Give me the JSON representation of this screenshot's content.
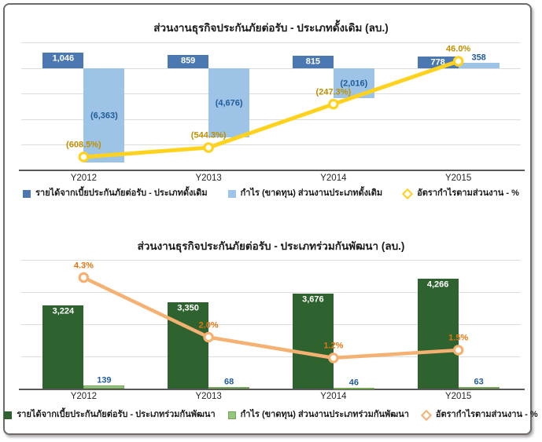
{
  "chart_data": [
    {
      "type": "bar",
      "subtype": "combo-bar-line",
      "title": "ส่วนงานธุรกิจประกันภัยต่อรับ - ประเภทดั้งเดิม (ลบ.)",
      "categories": [
        "Y2012",
        "Y2013",
        "Y2014",
        "Y2015"
      ],
      "series": [
        {
          "key": "revenue-traditional",
          "name": "รายได้จากเบี้ยประกันภัยต่อรับ - ประเภทดั้งเดิม",
          "type": "bar",
          "axis": "primary",
          "color": "#4B78B1",
          "label_color": "#ffffff",
          "label_placement": "inside-top",
          "values": [
            1046,
            859,
            815,
            778
          ],
          "labels": [
            "1,046",
            "859",
            "815",
            "778"
          ]
        },
        {
          "key": "profit-traditional",
          "name": "กำไร (ขาดทุน) ส่วนงานประเภทดั้งเดิม",
          "type": "bar",
          "axis": "primary",
          "color": "#9DC3E6",
          "label_color": "#215C9C",
          "label_placement": "auto",
          "values": [
            -6363,
            -4676,
            -2016,
            358
          ],
          "labels": [
            "(6,363)",
            "(4,676)",
            "(2,016)",
            "358"
          ]
        },
        {
          "key": "margin-traditional",
          "name": "อัตรากำไรตามส่วนงาน - %",
          "type": "line",
          "axis": "secondary",
          "color": "#FFD21E",
          "label_color": "#BF8F00",
          "marker": "open-circle",
          "values": [
            -608.5,
            -544.3,
            -247.3,
            46.0
          ],
          "labels": [
            "(608.5%)",
            "(544.3%)",
            "(247.3%)",
            "46.0%"
          ]
        }
      ],
      "y1_range": [
        -6880,
        1720
      ],
      "y2_range": [
        -700,
        175
      ],
      "grid": true,
      "legend_position": "bottom"
    },
    {
      "type": "bar",
      "subtype": "combo-bar-line",
      "title": "ส่วนงานธุรกิจประกันภัยต่อรับ - ประเภทร่วมกันพัฒนา (ลบ.)",
      "categories": [
        "Y2012",
        "Y2013",
        "Y2014",
        "Y2015"
      ],
      "series": [
        {
          "key": "revenue-codeveloped",
          "name": "รายได้จากเบี้ยประกันภัยต่อรับ - ประเภทร่วมกันพัฒนา",
          "type": "bar",
          "axis": "primary",
          "color": "#2E6330",
          "label_color": "#ffffff",
          "label_placement": "inside-top",
          "values": [
            3224,
            3350,
            3676,
            4266
          ],
          "labels": [
            "3,224",
            "3,350",
            "3,676",
            "4,266"
          ]
        },
        {
          "key": "profit-codeveloped",
          "name": "กำไร (ขาดทุน) ส่วนงานประเภทร่วมกันพัฒนา",
          "type": "bar",
          "axis": "primary",
          "color": "#94C47D",
          "border_color": "#74A751",
          "label_color": "#215C9C",
          "label_placement": "auto",
          "values": [
            139,
            68,
            46,
            63
          ],
          "labels": [
            "139",
            "68",
            "46",
            "63"
          ]
        },
        {
          "key": "margin-codeveloped",
          "name": "อัตรากำไรตามส่วนงาน - %",
          "type": "line",
          "axis": "secondary",
          "color": "#F5B171",
          "label_color": "#E2740E",
          "marker": "open-circle",
          "values": [
            4.3,
            2.0,
            1.2,
            1.5
          ],
          "labels": [
            "4.3%",
            "2.0%",
            "1.2%",
            "1.5%"
          ]
        }
      ],
      "y1_range": [
        0,
        5000
      ],
      "y2_range": [
        0,
        5
      ],
      "grid": true,
      "legend_position": "bottom"
    }
  ]
}
